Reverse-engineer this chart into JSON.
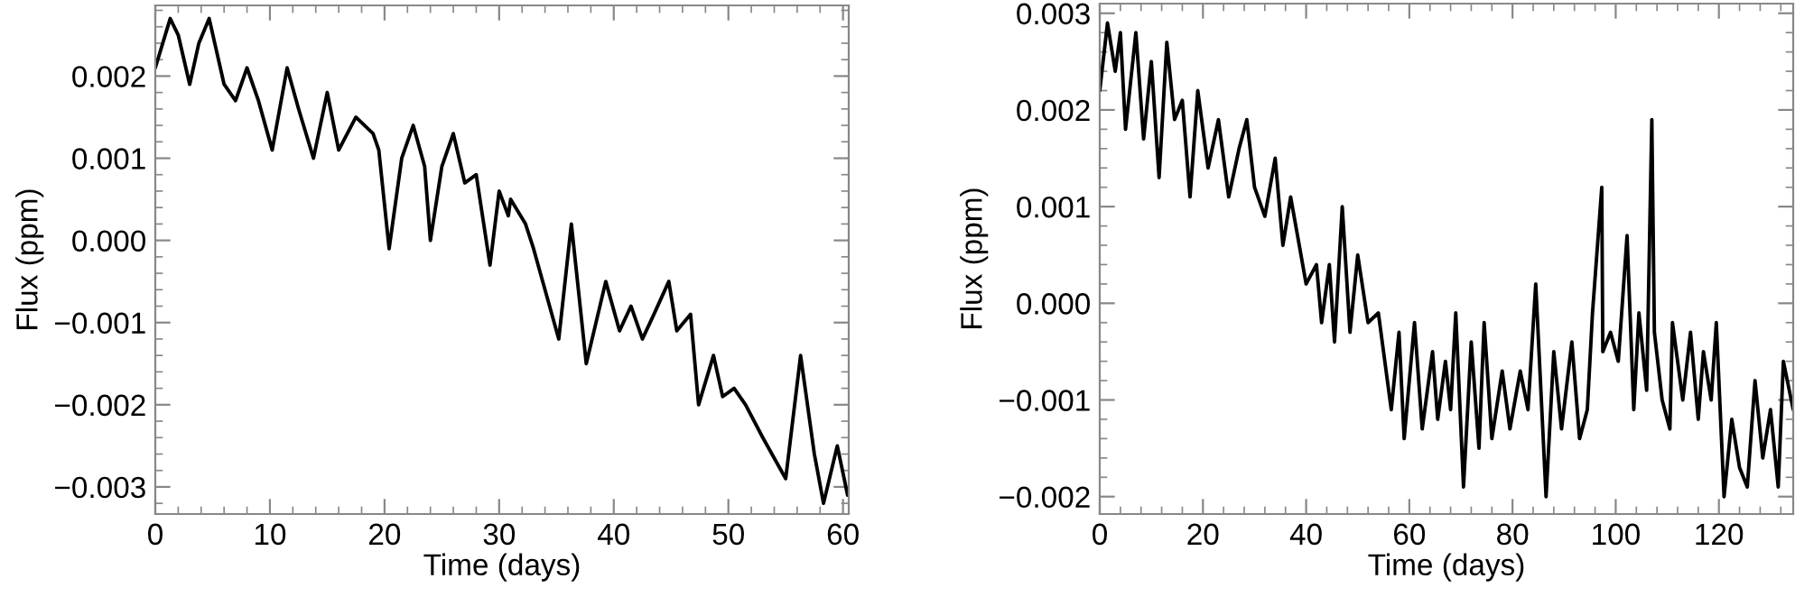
{
  "chart_data": [
    {
      "type": "line",
      "xlabel": "Time (days)",
      "ylabel": "Flux (ppm)",
      "xlim": [
        0,
        60.5
      ],
      "ylim": [
        -0.00333,
        0.00286
      ],
      "xticks": [
        0,
        10,
        20,
        30,
        40,
        50,
        60
      ],
      "yticks": [
        {
          "value": -0.003,
          "label": "−0.003"
        },
        {
          "value": -0.002,
          "label": "−0.002"
        },
        {
          "value": -0.001,
          "label": "−0.001"
        },
        {
          "value": 0.0,
          "label": "0.000"
        },
        {
          "value": 0.001,
          "label": "0.001"
        },
        {
          "value": 0.002,
          "label": "0.002"
        }
      ],
      "grid": false,
      "legend": false,
      "marker": "none",
      "line_style": "solid",
      "series": [
        {
          "color": "#000000",
          "x": [
            0,
            1.3,
            2,
            3,
            3.8,
            4.7,
            6,
            7,
            8,
            9,
            10.2,
            11.5,
            12.5,
            13.8,
            15,
            16,
            17.5,
            19,
            19.5,
            20.4,
            21.5,
            22.5,
            23.5,
            24,
            25,
            26,
            27,
            28,
            29.2,
            30,
            30.8,
            31,
            32.3,
            33,
            34,
            35.2,
            36.3,
            37.6,
            39.3,
            40.5,
            41.5,
            42.5,
            43.5,
            44.8,
            45.5,
            46.7,
            47.4,
            48.7,
            49.5,
            50.5,
            51.5,
            53,
            55,
            56.3,
            57.5,
            58.3,
            59.5,
            60.4
          ],
          "values": [
            0.0021,
            0.0027,
            0.0025,
            0.0019,
            0.0024,
            0.0027,
            0.0019,
            0.0017,
            0.0021,
            0.0017,
            0.0011,
            0.0021,
            0.0016,
            0.001,
            0.0018,
            0.0011,
            0.0015,
            0.0013,
            0.0011,
            -0.0001,
            0.001,
            0.0014,
            0.0009,
            0.0,
            0.0009,
            0.0013,
            0.0007,
            0.0008,
            -0.0003,
            0.0006,
            0.0003,
            0.0005,
            0.0002,
            -0.0001,
            -0.0006,
            -0.0012,
            0.0002,
            -0.0015,
            -0.0005,
            -0.0011,
            -0.0008,
            -0.0012,
            -0.0009,
            -0.0005,
            -0.0011,
            -0.0009,
            -0.002,
            -0.0014,
            -0.0019,
            -0.0018,
            -0.002,
            -0.0024,
            -0.0029,
            -0.0014,
            -0.0026,
            -0.0032,
            -0.0025,
            -0.0031
          ]
        }
      ]
    },
    {
      "type": "line",
      "xlabel": "Time (days)",
      "ylabel": "Flux (ppm)",
      "xlim": [
        0,
        134.4
      ],
      "ylim": [
        -0.00218,
        0.0031
      ],
      "xticks": [
        0,
        20,
        40,
        60,
        80,
        100,
        120
      ],
      "yticks": [
        {
          "value": -0.002,
          "label": "−0.002"
        },
        {
          "value": -0.001,
          "label": "−0.001"
        },
        {
          "value": 0.0,
          "label": "0.000"
        },
        {
          "value": 0.001,
          "label": "0.001"
        },
        {
          "value": 0.002,
          "label": "0.002"
        },
        {
          "value": 0.003,
          "label": "0.003"
        }
      ],
      "grid": false,
      "legend": false,
      "marker": "none",
      "line_style": "solid",
      "series": [
        {
          "color": "#000000",
          "x": [
            0,
            1.5,
            3,
            4,
            5,
            7,
            8.5,
            10,
            11.5,
            13,
            14.5,
            16,
            17.5,
            19,
            21,
            23,
            25,
            27,
            28.5,
            30,
            32,
            34,
            35.5,
            37,
            40,
            42,
            43,
            44.5,
            45.5,
            47,
            48.5,
            50,
            52,
            54,
            56.5,
            58,
            59,
            61,
            62.5,
            64.5,
            65.5,
            67,
            68,
            69,
            70.5,
            72,
            73.5,
            74.5,
            76,
            78,
            79.5,
            81.5,
            83,
            84.5,
            86.5,
            88,
            89.5,
            91.5,
            93,
            94.5,
            95.5,
            97.3,
            97.5,
            99,
            100.5,
            102.2,
            103.5,
            104.5,
            106,
            107,
            107.5,
            109,
            110.5,
            111,
            113,
            114.5,
            116,
            117,
            118.5,
            119.5,
            121,
            122.5,
            124,
            125.5,
            127,
            128.5,
            130,
            131.5,
            132.5,
            134.4
          ],
          "values": [
            0.0022,
            0.0029,
            0.0024,
            0.0028,
            0.0018,
            0.0028,
            0.0017,
            0.0025,
            0.0013,
            0.0027,
            0.0019,
            0.0021,
            0.0011,
            0.0022,
            0.0014,
            0.0019,
            0.0011,
            0.0016,
            0.0019,
            0.0012,
            0.0009,
            0.0015,
            0.0006,
            0.0011,
            0.0002,
            0.0004,
            -0.0002,
            0.0004,
            -0.0004,
            0.001,
            -0.0003,
            0.0005,
            -0.0002,
            -0.0001,
            -0.0011,
            -0.0003,
            -0.0014,
            -0.0002,
            -0.0013,
            -0.0005,
            -0.0012,
            -0.0006,
            -0.0011,
            -0.0001,
            -0.0019,
            -0.0004,
            -0.0015,
            -0.0002,
            -0.0014,
            -0.0007,
            -0.0013,
            -0.0007,
            -0.0011,
            0.0002,
            -0.002,
            -0.0005,
            -0.0013,
            -0.0004,
            -0.0014,
            -0.0011,
            -0.0001,
            0.0012,
            -0.0005,
            -0.0003,
            -0.0006,
            0.0007,
            -0.0011,
            -0.0001,
            -0.0009,
            0.0019,
            -0.0003,
            -0.001,
            -0.0013,
            -0.0002,
            -0.001,
            -0.0003,
            -0.0012,
            -0.0005,
            -0.001,
            -0.0002,
            -0.002,
            -0.0012,
            -0.0017,
            -0.0019,
            -0.0008,
            -0.0016,
            -0.0011,
            -0.0019,
            -0.0006,
            -0.0011
          ]
        }
      ]
    }
  ]
}
